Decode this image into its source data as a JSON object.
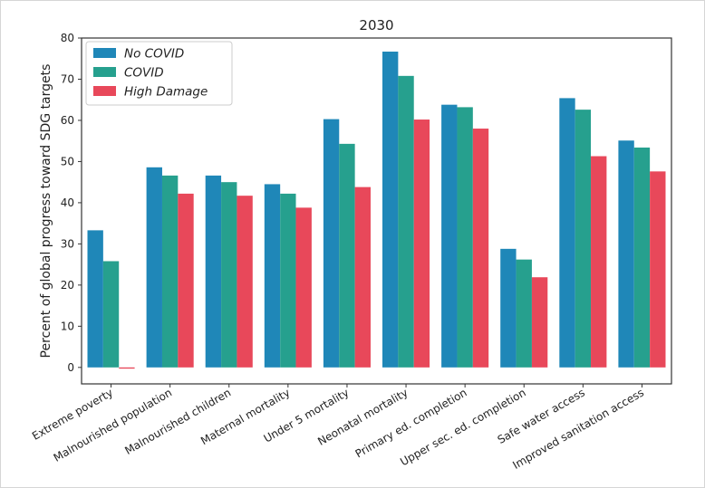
{
  "chart_data": {
    "type": "bar",
    "title": "2030",
    "ylabel": "Percent of global progress toward SDG targets",
    "xlabel": "",
    "ylim": [
      -4,
      80
    ],
    "yticks": [
      0,
      10,
      20,
      30,
      40,
      50,
      60,
      70,
      80
    ],
    "grid": false,
    "legend": "top-left",
    "categories": [
      "Extreme poverty",
      "Malnourished population",
      "Malnourished children",
      "Maternal mortality",
      "Under 5 mortality",
      "Neonatal mortality",
      "Primary ed. completion",
      "Upper sec. ed. completion",
      "Safe water access",
      "Improved sanitation access"
    ],
    "series": [
      {
        "name": "No COVID",
        "color": "#1f87b8",
        "values": [
          33.3,
          48.6,
          46.6,
          44.5,
          60.3,
          76.7,
          63.8,
          28.8,
          65.4,
          55.1
        ]
      },
      {
        "name": "COVID",
        "color": "#26a08e",
        "values": [
          25.8,
          46.6,
          45.0,
          42.2,
          54.3,
          70.8,
          63.2,
          26.2,
          62.6,
          53.4
        ]
      },
      {
        "name": "High Damage",
        "color": "#e8485a",
        "values": [
          -0.3,
          42.2,
          41.7,
          38.8,
          43.8,
          60.2,
          58.0,
          21.9,
          51.3,
          47.6
        ]
      }
    ]
  }
}
